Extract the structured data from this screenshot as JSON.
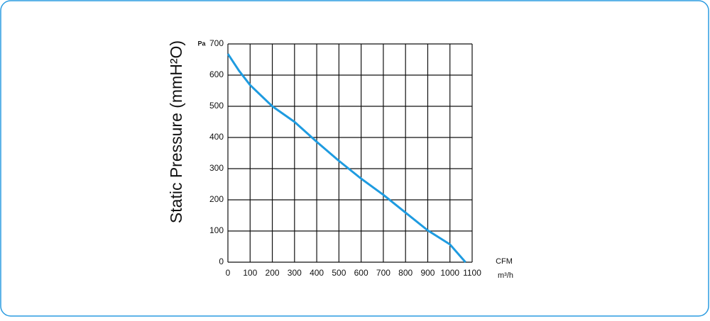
{
  "chart_data": {
    "type": "line",
    "y_label": "Static Pressure (mmH²O)",
    "y_unit": "Pa",
    "x_unit_top": "CFM",
    "x_unit_bottom": "m³/h",
    "x": [
      0,
      50,
      100,
      200,
      300,
      400,
      500,
      600,
      700,
      800,
      900,
      1000,
      1070
    ],
    "values": [
      668,
      614,
      568,
      500,
      450,
      386,
      325,
      268,
      216,
      159,
      102,
      57,
      0
    ],
    "color": "#1e9be0",
    "xlim": [
      0,
      1100
    ],
    "xticks": [
      0,
      100,
      200,
      300,
      400,
      500,
      600,
      700,
      800,
      900,
      1000,
      1100
    ],
    "ylim": [
      0,
      700
    ],
    "yticks": [
      0,
      100,
      200,
      300,
      400,
      500,
      600,
      700
    ],
    "grid": true
  }
}
